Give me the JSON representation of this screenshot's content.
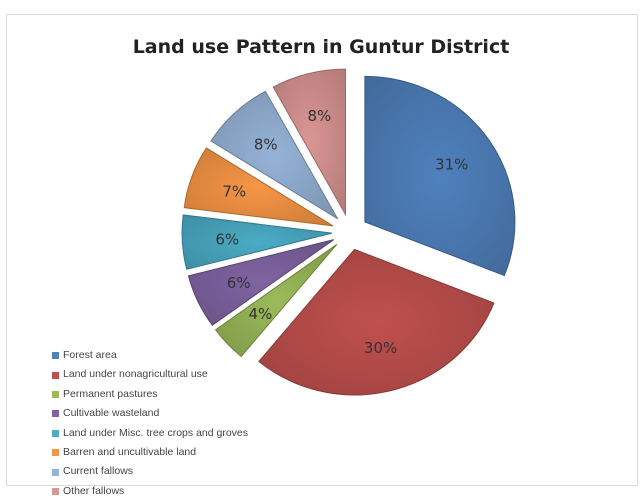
{
  "chart_data": {
    "type": "pie",
    "title": "Land use Pattern in Guntur District",
    "legend_position": "bottom-left",
    "slices": [
      {
        "name": "Forest area",
        "value": 31,
        "label": "31%",
        "color": "#4f81bd"
      },
      {
        "name": "Land under nonagricultural use",
        "value": 30,
        "label": "30%",
        "color": "#c0504d"
      },
      {
        "name": "Permanent pastures",
        "value": 4,
        "label": "4%",
        "color": "#9bbb59"
      },
      {
        "name": "Cultivable wasteland",
        "value": 6,
        "label": "6%",
        "color": "#8064a2"
      },
      {
        "name": "Land under Misc. tree crops and groves",
        "value": 6,
        "label": "6%",
        "color": "#4bacc6"
      },
      {
        "name": "Barren and uncultivable land",
        "value": 7,
        "label": "7%",
        "color": "#f79646"
      },
      {
        "name": "Current fallows",
        "value": 8,
        "label": "8%",
        "color": "#95b3d7"
      },
      {
        "name": "Other fallows",
        "value": 8,
        "label": "8%",
        "color": "#da9694"
      }
    ]
  }
}
